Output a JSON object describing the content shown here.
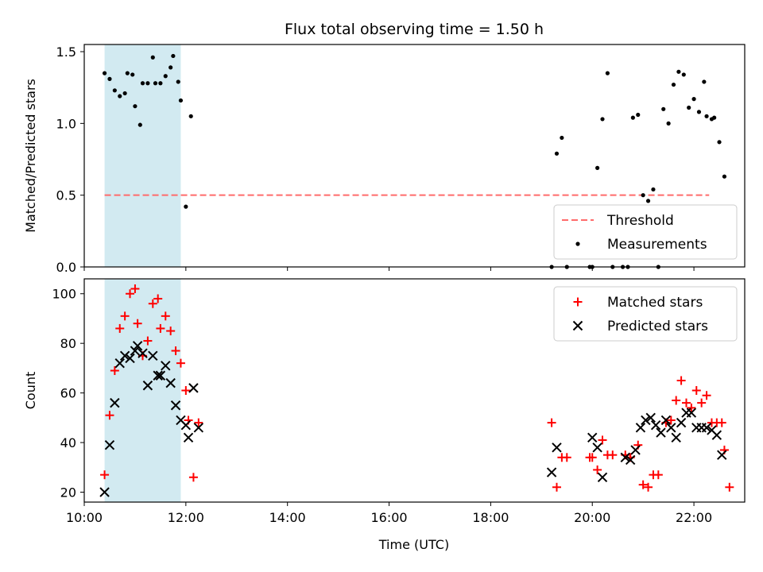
{
  "chart_data": {
    "title": "Flux total observing time = 1.50 h",
    "xlabel": "Time (UTC)",
    "x_type": "time",
    "x_unit": "hours UTC",
    "xlim": [
      "10:00",
      "23:00"
    ],
    "xticks": [
      "10:00",
      "12:00",
      "14:00",
      "16:00",
      "18:00",
      "20:00",
      "22:00"
    ],
    "shaded_span": {
      "x": [
        "10:24",
        "11:54"
      ],
      "color": "#add8e6"
    },
    "panels": [
      {
        "type": "scatter",
        "ylabel": "Matched/Predicted stars",
        "ylim": [
          0,
          1.55
        ],
        "yticks": [
          "0.0",
          "0.5",
          "1.0",
          "1.5"
        ],
        "legend_position": "lower-right",
        "threshold": {
          "name": "Threshold",
          "value": 0.5,
          "x": [
            "10:24",
            "22:18"
          ],
          "color": "#ff6b6b",
          "style": "dashed"
        },
        "series": [
          {
            "name": "Measurements",
            "marker": "dot",
            "color": "#000000",
            "points": [
              [
                "10:24",
                1.35
              ],
              [
                "10:30",
                1.31
              ],
              [
                "10:36",
                1.23
              ],
              [
                "10:42",
                1.19
              ],
              [
                "10:48",
                1.21
              ],
              [
                "10:51",
                1.35
              ],
              [
                "10:57",
                1.34
              ],
              [
                "11:00",
                1.12
              ],
              [
                "11:06",
                0.99
              ],
              [
                "11:09",
                1.28
              ],
              [
                "11:15",
                1.28
              ],
              [
                "11:21",
                1.46
              ],
              [
                "11:24",
                1.28
              ],
              [
                "11:30",
                1.28
              ],
              [
                "11:36",
                1.33
              ],
              [
                "11:42",
                1.39
              ],
              [
                "11:45",
                1.47
              ],
              [
                "11:51",
                1.29
              ],
              [
                "11:54",
                1.16
              ],
              [
                "12:00",
                0.42
              ],
              [
                "12:06",
                1.05
              ],
              [
                "19:12",
                0.0
              ],
              [
                "19:18",
                0.79
              ],
              [
                "19:24",
                0.9
              ],
              [
                "19:30",
                0.0
              ],
              [
                "19:57",
                0.0
              ],
              [
                "20:00",
                0.0
              ],
              [
                "20:06",
                0.69
              ],
              [
                "20:12",
                1.03
              ],
              [
                "20:18",
                1.35
              ],
              [
                "20:24",
                0.0
              ],
              [
                "20:36",
                0.0
              ],
              [
                "20:42",
                0.0
              ],
              [
                "20:48",
                1.04
              ],
              [
                "20:54",
                1.06
              ],
              [
                "21:00",
                0.5
              ],
              [
                "21:06",
                0.46
              ],
              [
                "21:12",
                0.54
              ],
              [
                "21:18",
                0.0
              ],
              [
                "21:24",
                1.1
              ],
              [
                "21:30",
                1.0
              ],
              [
                "21:36",
                1.27
              ],
              [
                "21:42",
                1.36
              ],
              [
                "21:48",
                1.34
              ],
              [
                "21:54",
                1.11
              ],
              [
                "22:00",
                1.17
              ],
              [
                "22:06",
                1.08
              ],
              [
                "22:12",
                1.29
              ],
              [
                "22:15",
                1.05
              ],
              [
                "22:21",
                1.03
              ],
              [
                "22:24",
                1.04
              ],
              [
                "22:30",
                0.87
              ],
              [
                "22:36",
                0.63
              ]
            ]
          }
        ]
      },
      {
        "type": "scatter",
        "ylabel": "Count",
        "ylim": [
          16,
          106
        ],
        "yticks": [
          "20",
          "40",
          "60",
          "80",
          "100"
        ],
        "legend_position": "top-right",
        "series": [
          {
            "name": "Matched stars",
            "marker": "plus",
            "color": "#ff0000",
            "points": [
              [
                "10:24",
                27
              ],
              [
                "10:30",
                51
              ],
              [
                "10:36",
                69
              ],
              [
                "10:42",
                86
              ],
              [
                "10:48",
                91
              ],
              [
                "10:54",
                100
              ],
              [
                "11:00",
                102
              ],
              [
                "11:03",
                88
              ],
              [
                "11:09",
                75
              ],
              [
                "11:15",
                81
              ],
              [
                "11:21",
                96
              ],
              [
                "11:27",
                98
              ],
              [
                "11:30",
                86
              ],
              [
                "11:36",
                91
              ],
              [
                "11:42",
                85
              ],
              [
                "11:48",
                77
              ],
              [
                "11:54",
                72
              ],
              [
                "12:00",
                61
              ],
              [
                "12:03",
                49
              ],
              [
                "12:09",
                26
              ],
              [
                "12:15",
                48
              ],
              [
                "19:12",
                48
              ],
              [
                "19:18",
                22
              ],
              [
                "19:24",
                34
              ],
              [
                "19:30",
                34
              ],
              [
                "19:57",
                34
              ],
              [
                "20:00",
                34
              ],
              [
                "20:06",
                29
              ],
              [
                "20:12",
                41
              ],
              [
                "20:18",
                35
              ],
              [
                "20:24",
                35
              ],
              [
                "20:39",
                35
              ],
              [
                "20:45",
                34
              ],
              [
                "20:54",
                39
              ],
              [
                "21:00",
                23
              ],
              [
                "21:06",
                22
              ],
              [
                "21:12",
                27
              ],
              [
                "21:18",
                27
              ],
              [
                "21:27",
                48
              ],
              [
                "21:33",
                49
              ],
              [
                "21:39",
                57
              ],
              [
                "21:45",
                65
              ],
              [
                "21:51",
                56
              ],
              [
                "21:57",
                54
              ],
              [
                "22:03",
                61
              ],
              [
                "22:09",
                56
              ],
              [
                "22:15",
                59
              ],
              [
                "22:21",
                48
              ],
              [
                "22:27",
                48
              ],
              [
                "22:33",
                48
              ],
              [
                "22:36",
                37
              ],
              [
                "22:42",
                22
              ]
            ]
          },
          {
            "name": "Predicted stars",
            "marker": "x",
            "color": "#000000",
            "points": [
              [
                "10:24",
                20
              ],
              [
                "10:30",
                39
              ],
              [
                "10:36",
                56
              ],
              [
                "10:42",
                72
              ],
              [
                "10:48",
                75
              ],
              [
                "10:54",
                74
              ],
              [
                "11:00",
                77
              ],
              [
                "11:03",
                79
              ],
              [
                "11:09",
                76
              ],
              [
                "11:15",
                63
              ],
              [
                "11:21",
                75
              ],
              [
                "11:27",
                67
              ],
              [
                "11:30",
                67
              ],
              [
                "11:36",
                71
              ],
              [
                "11:42",
                64
              ],
              [
                "11:48",
                55
              ],
              [
                "11:54",
                49
              ],
              [
                "12:00",
                47
              ],
              [
                "12:03",
                42
              ],
              [
                "12:09",
                62
              ],
              [
                "12:15",
                46
              ],
              [
                "19:12",
                28
              ],
              [
                "19:18",
                38
              ],
              [
                "20:00",
                42
              ],
              [
                "20:06",
                38
              ],
              [
                "20:12",
                26
              ],
              [
                "20:39",
                34
              ],
              [
                "20:45",
                33
              ],
              [
                "20:51",
                37
              ],
              [
                "20:57",
                46
              ],
              [
                "21:03",
                49
              ],
              [
                "21:09",
                50
              ],
              [
                "21:15",
                47
              ],
              [
                "21:21",
                44
              ],
              [
                "21:27",
                49
              ],
              [
                "21:33",
                46
              ],
              [
                "21:39",
                42
              ],
              [
                "21:45",
                48
              ],
              [
                "21:51",
                52
              ],
              [
                "21:57",
                52
              ],
              [
                "22:03",
                46
              ],
              [
                "22:09",
                46
              ],
              [
                "22:15",
                46
              ],
              [
                "22:21",
                45
              ],
              [
                "22:27",
                43
              ],
              [
                "22:33",
                35
              ]
            ]
          }
        ]
      }
    ]
  }
}
